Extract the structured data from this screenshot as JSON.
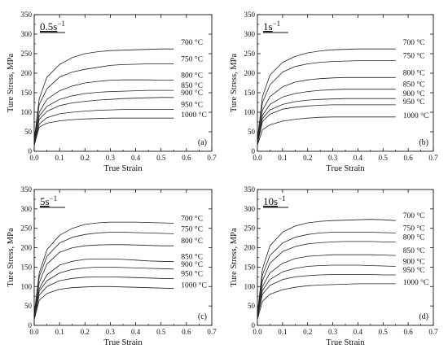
{
  "chart_data": [
    {
      "type": "line",
      "panel_tag": "(a)",
      "strain_rate": {
        "base": "0.5s",
        "sup": "−1"
      },
      "xlabel": "True Strain",
      "ylabel": "Ture Stress, MPa",
      "xlim": [
        0.0,
        0.7
      ],
      "ylim": [
        0,
        350
      ],
      "xticks": [
        "0.0",
        "0.1",
        "0.2",
        "0.3",
        "0.4",
        "0.5",
        "0.6",
        "0.7"
      ],
      "yticks": [
        "0",
        "50",
        "100",
        "150",
        "200",
        "250",
        "300",
        "350"
      ],
      "grid": false,
      "series": [
        {
          "name": "700 °C",
          "x": [
            0.0,
            0.02,
            0.05,
            0.1,
            0.15,
            0.2,
            0.25,
            0.3,
            0.35,
            0.4,
            0.45,
            0.5,
            0.55
          ],
          "y": [
            30,
            135,
            190,
            222,
            240,
            250,
            255,
            258,
            259,
            260,
            261,
            262,
            262
          ]
        },
        {
          "name": "750 °C",
          "x": [
            0.0,
            0.02,
            0.05,
            0.1,
            0.15,
            0.2,
            0.25,
            0.3,
            0.35,
            0.4,
            0.45,
            0.5,
            0.55
          ],
          "y": [
            28,
            120,
            160,
            190,
            203,
            210,
            215,
            220,
            222,
            223,
            224,
            224,
            224
          ]
        },
        {
          "name": "800 °C",
          "x": [
            0.0,
            0.02,
            0.05,
            0.1,
            0.15,
            0.2,
            0.25,
            0.3,
            0.35,
            0.4,
            0.45,
            0.5,
            0.55
          ],
          "y": [
            25,
            100,
            133,
            155,
            167,
            175,
            179,
            182,
            183,
            183,
            183,
            182,
            182
          ]
        },
        {
          "name": "850 °C",
          "x": [
            0.0,
            0.02,
            0.05,
            0.1,
            0.15,
            0.2,
            0.25,
            0.3,
            0.35,
            0.4,
            0.45,
            0.5,
            0.55
          ],
          "y": [
            22,
            90,
            115,
            133,
            142,
            148,
            151,
            153,
            154,
            155,
            156,
            156,
            156
          ]
        },
        {
          "name": "900 °C",
          "x": [
            0.0,
            0.02,
            0.05,
            0.1,
            0.15,
            0.2,
            0.25,
            0.3,
            0.35,
            0.4,
            0.45,
            0.5,
            0.55
          ],
          "y": [
            20,
            82,
            102,
            117,
            124,
            128,
            131,
            133,
            135,
            136,
            137,
            138,
            138
          ]
        },
        {
          "name": "950 °C",
          "x": [
            0.0,
            0.02,
            0.05,
            0.1,
            0.15,
            0.2,
            0.25,
            0.3,
            0.35,
            0.4,
            0.45,
            0.5,
            0.55
          ],
          "y": [
            18,
            70,
            86,
            96,
            100,
            103,
            105,
            106,
            107,
            107,
            107,
            107,
            107
          ]
        },
        {
          "name": "1000 °C",
          "x": [
            0.0,
            0.02,
            0.05,
            0.1,
            0.15,
            0.2,
            0.25,
            0.3,
            0.35,
            0.4,
            0.45,
            0.5,
            0.55
          ],
          "y": [
            15,
            62,
            72,
            78,
            81,
            83,
            84,
            85,
            85,
            85,
            85,
            85,
            85
          ]
        }
      ]
    },
    {
      "type": "line",
      "panel_tag": "(b)",
      "strain_rate": {
        "base": "1s",
        "sup": "−1"
      },
      "xlabel": "True Strain",
      "ylabel": "Ture Stress, MPa",
      "xlim": [
        0.0,
        0.7
      ],
      "ylim": [
        0,
        350
      ],
      "xticks": [
        "0.0",
        "0.1",
        "0.2",
        "0.3",
        "0.4",
        "0.5",
        "0.6",
        "0.7"
      ],
      "yticks": [
        "0",
        "50",
        "100",
        "150",
        "200",
        "250",
        "300",
        "350"
      ],
      "grid": false,
      "series": [
        {
          "name": "700 °C",
          "x": [
            0.0,
            0.02,
            0.05,
            0.1,
            0.15,
            0.2,
            0.25,
            0.3,
            0.35,
            0.4,
            0.45,
            0.5,
            0.55
          ],
          "y": [
            30,
            140,
            195,
            228,
            243,
            252,
            257,
            260,
            261,
            262,
            262,
            262,
            262
          ]
        },
        {
          "name": "750 °C",
          "x": [
            0.0,
            0.02,
            0.05,
            0.1,
            0.15,
            0.2,
            0.25,
            0.3,
            0.35,
            0.4,
            0.45,
            0.5,
            0.55
          ],
          "y": [
            28,
            125,
            170,
            203,
            217,
            224,
            228,
            230,
            231,
            232,
            232,
            232,
            232
          ]
        },
        {
          "name": "800 °C",
          "x": [
            0.0,
            0.02,
            0.05,
            0.1,
            0.15,
            0.2,
            0.25,
            0.3,
            0.35,
            0.4,
            0.45,
            0.5,
            0.55
          ],
          "y": [
            25,
            105,
            140,
            165,
            177,
            183,
            186,
            188,
            189,
            189,
            189,
            189,
            189
          ]
        },
        {
          "name": "850 °C",
          "x": [
            0.0,
            0.02,
            0.05,
            0.1,
            0.15,
            0.2,
            0.25,
            0.3,
            0.35,
            0.4,
            0.45,
            0.5,
            0.55
          ],
          "y": [
            22,
            92,
            120,
            139,
            148,
            153,
            156,
            158,
            159,
            159,
            159,
            159,
            159
          ]
        },
        {
          "name": "900 °C",
          "x": [
            0.0,
            0.02,
            0.05,
            0.1,
            0.15,
            0.2,
            0.25,
            0.3,
            0.35,
            0.4,
            0.45,
            0.5,
            0.55
          ],
          "y": [
            20,
            84,
            106,
            120,
            127,
            131,
            133,
            134,
            135,
            135,
            135,
            135,
            135
          ]
        },
        {
          "name": "950 °C",
          "x": [
            0.0,
            0.02,
            0.05,
            0.1,
            0.15,
            0.2,
            0.25,
            0.3,
            0.35,
            0.4,
            0.45,
            0.5,
            0.55
          ],
          "y": [
            18,
            76,
            95,
            108,
            113,
            116,
            118,
            119,
            119,
            119,
            119,
            119,
            119
          ]
        },
        {
          "name": "1000 °C",
          "x": [
            0.0,
            0.02,
            0.05,
            0.1,
            0.15,
            0.2,
            0.25,
            0.3,
            0.35,
            0.4,
            0.45,
            0.5,
            0.55
          ],
          "y": [
            15,
            55,
            68,
            77,
            82,
            85,
            87,
            88,
            88,
            88,
            88,
            88,
            88
          ]
        }
      ]
    },
    {
      "type": "line",
      "panel_tag": "(c)",
      "strain_rate": {
        "base": "5s",
        "sup": "−1"
      },
      "xlabel": "True Strain",
      "ylabel": "Ture Stress, MPa",
      "xlim": [
        0.0,
        0.7
      ],
      "ylim": [
        0,
        350
      ],
      "xticks": [
        "0.0",
        "0.1",
        "0.2",
        "0.3",
        "0.4",
        "0.5",
        "0.6",
        "0.7"
      ],
      "yticks": [
        "0",
        "50",
        "100",
        "150",
        "200",
        "250",
        "300",
        "350"
      ],
      "grid": false,
      "series": [
        {
          "name": "700 °C",
          "x": [
            0.0,
            0.02,
            0.05,
            0.1,
            0.15,
            0.2,
            0.25,
            0.3,
            0.35,
            0.4,
            0.45,
            0.5,
            0.55
          ],
          "y": [
            30,
            135,
            195,
            232,
            250,
            260,
            264,
            266,
            266,
            266,
            265,
            264,
            263
          ]
        },
        {
          "name": "750 °C",
          "x": [
            0.0,
            0.02,
            0.05,
            0.1,
            0.15,
            0.2,
            0.25,
            0.3,
            0.35,
            0.4,
            0.45,
            0.5,
            0.55
          ],
          "y": [
            28,
            125,
            178,
            212,
            227,
            234,
            238,
            240,
            240,
            239,
            238,
            237,
            236
          ]
        },
        {
          "name": "800 °C",
          "x": [
            0.0,
            0.02,
            0.05,
            0.1,
            0.15,
            0.2,
            0.25,
            0.3,
            0.35,
            0.4,
            0.45,
            0.5,
            0.55
          ],
          "y": [
            25,
            110,
            158,
            188,
            200,
            205,
            207,
            208,
            208,
            207,
            206,
            205,
            205
          ]
        },
        {
          "name": "850 °C",
          "x": [
            0.0,
            0.02,
            0.05,
            0.1,
            0.15,
            0.2,
            0.25,
            0.3,
            0.35,
            0.4,
            0.45,
            0.5,
            0.55
          ],
          "y": [
            22,
            95,
            130,
            155,
            165,
            170,
            171,
            171,
            170,
            168,
            166,
            165,
            164
          ]
        },
        {
          "name": "900 °C",
          "x": [
            0.0,
            0.02,
            0.05,
            0.1,
            0.15,
            0.2,
            0.25,
            0.3,
            0.35,
            0.4,
            0.45,
            0.5,
            0.55
          ],
          "y": [
            20,
            88,
            115,
            135,
            144,
            148,
            150,
            150,
            149,
            148,
            147,
            146,
            145
          ]
        },
        {
          "name": "950 °C",
          "x": [
            0.0,
            0.02,
            0.05,
            0.1,
            0.15,
            0.2,
            0.25,
            0.3,
            0.35,
            0.4,
            0.45,
            0.5,
            0.55
          ],
          "y": [
            18,
            78,
            100,
            115,
            121,
            124,
            125,
            125,
            124,
            123,
            122,
            121,
            120
          ]
        },
        {
          "name": "1000 °C",
          "x": [
            0.0,
            0.02,
            0.05,
            0.1,
            0.15,
            0.2,
            0.25,
            0.3,
            0.35,
            0.4,
            0.45,
            0.5,
            0.55
          ],
          "y": [
            15,
            65,
            82,
            93,
            97,
            99,
            100,
            100,
            99,
            98,
            97,
            96,
            95
          ]
        }
      ]
    },
    {
      "type": "line",
      "panel_tag": "(d)",
      "strain_rate": {
        "base": "10s",
        "sup": "−1"
      },
      "xlabel": "True Strain",
      "ylabel": "Ture Stress, MPa",
      "xlim": [
        0.0,
        0.7
      ],
      "ylim": [
        0,
        350
      ],
      "xticks": [
        "0.0",
        "0.1",
        "0.2",
        "0.3",
        "0.4",
        "0.5",
        "0.6",
        "0.7"
      ],
      "yticks": [
        "0",
        "50",
        "100",
        "150",
        "200",
        "250",
        "300",
        "350"
      ],
      "grid": false,
      "series": [
        {
          "name": "700 °C",
          "x": [
            0.0,
            0.02,
            0.05,
            0.1,
            0.15,
            0.2,
            0.25,
            0.3,
            0.35,
            0.4,
            0.45,
            0.5,
            0.55
          ],
          "y": [
            30,
            145,
            205,
            240,
            256,
            264,
            268,
            270,
            271,
            272,
            273,
            272,
            270
          ]
        },
        {
          "name": "750 °C",
          "x": [
            0.0,
            0.02,
            0.05,
            0.1,
            0.15,
            0.2,
            0.25,
            0.3,
            0.35,
            0.4,
            0.45,
            0.5,
            0.55
          ],
          "y": [
            28,
            130,
            180,
            212,
            227,
            234,
            238,
            240,
            240,
            240,
            240,
            239,
            238
          ]
        },
        {
          "name": "800 °C",
          "x": [
            0.0,
            0.02,
            0.05,
            0.1,
            0.15,
            0.2,
            0.25,
            0.3,
            0.35,
            0.4,
            0.45,
            0.5,
            0.55
          ],
          "y": [
            25,
            115,
            160,
            190,
            203,
            210,
            213,
            215,
            216,
            216,
            216,
            215,
            215
          ]
        },
        {
          "name": "850 °C",
          "x": [
            0.0,
            0.02,
            0.05,
            0.1,
            0.15,
            0.2,
            0.25,
            0.3,
            0.35,
            0.4,
            0.45,
            0.5,
            0.55
          ],
          "y": [
            22,
            100,
            135,
            160,
            172,
            178,
            180,
            182,
            182,
            182,
            182,
            181,
            180
          ]
        },
        {
          "name": "900 °C",
          "x": [
            0.0,
            0.02,
            0.05,
            0.1,
            0.15,
            0.2,
            0.25,
            0.3,
            0.35,
            0.4,
            0.45,
            0.5,
            0.55
          ],
          "y": [
            20,
            90,
            118,
            138,
            147,
            152,
            154,
            155,
            155,
            155,
            154,
            153,
            152
          ]
        },
        {
          "name": "950 °C",
          "x": [
            0.0,
            0.02,
            0.05,
            0.1,
            0.15,
            0.2,
            0.25,
            0.3,
            0.35,
            0.4,
            0.45,
            0.5,
            0.55
          ],
          "y": [
            18,
            80,
            103,
            118,
            125,
            128,
            130,
            131,
            131,
            131,
            131,
            130,
            130
          ]
        },
        {
          "name": "1000 °C",
          "x": [
            0.0,
            0.02,
            0.05,
            0.1,
            0.15,
            0.2,
            0.25,
            0.3,
            0.35,
            0.4,
            0.45,
            0.5,
            0.55
          ],
          "y": [
            15,
            62,
            80,
            92,
            98,
            102,
            104,
            105,
            106,
            107,
            107,
            107,
            107
          ]
        }
      ]
    }
  ]
}
